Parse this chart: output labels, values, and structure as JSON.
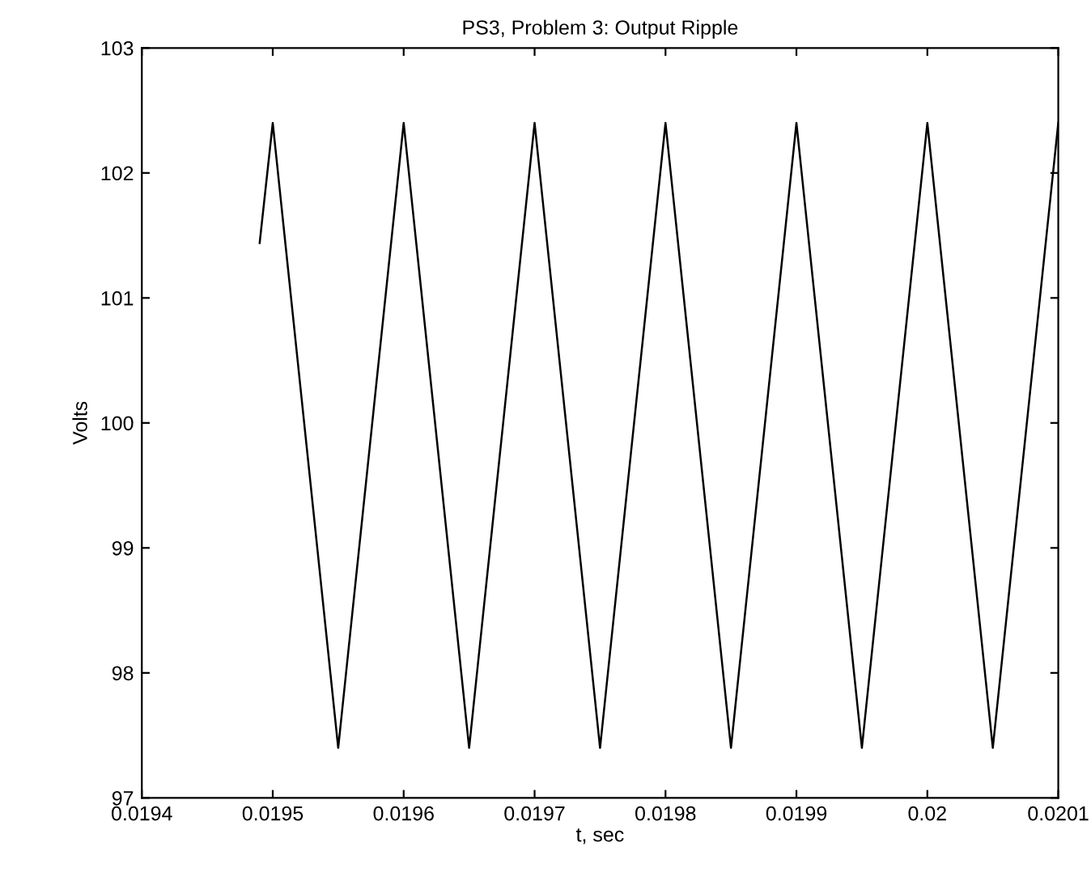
{
  "chart_data": {
    "type": "line",
    "title": "PS3, Problem 3: Output Ripple",
    "xlabel": "t, sec",
    "ylabel": "Volts",
    "x": [
      0.01949,
      0.0195,
      0.01955,
      0.0196,
      0.01965,
      0.0197,
      0.01975,
      0.0198,
      0.01985,
      0.0199,
      0.01995,
      0.02,
      0.02005,
      0.0201
    ],
    "series": [
      {
        "color": "#000000",
        "values": [
          101.44,
          102.4,
          97.4,
          102.4,
          97.4,
          102.4,
          97.4,
          102.4,
          97.4,
          102.4,
          97.4,
          102.4,
          97.4,
          102.4
        ]
      }
    ],
    "xlim": [
      0.0194,
      0.0201
    ],
    "xticks": [
      0.0194,
      0.0195,
      0.0196,
      0.0197,
      0.0198,
      0.0199,
      0.02,
      0.0201
    ],
    "ylim": [
      97,
      103
    ],
    "yticks": [
      97,
      98,
      99,
      100,
      101,
      102,
      103
    ],
    "grid": false,
    "legend": false,
    "marker": "none",
    "line_style": "solid"
  }
}
